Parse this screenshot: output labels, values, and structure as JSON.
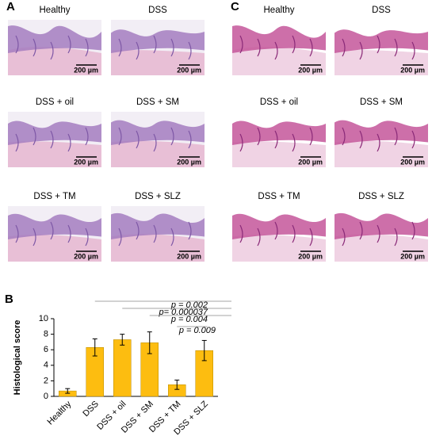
{
  "chart_data": {
    "type": "bar",
    "panel_label": "B",
    "y_label": "Histological score",
    "categories": [
      "Healthy",
      "DSS",
      "DSS + oil",
      "DSS + SM",
      "DSS + TM",
      "DSS + SLZ"
    ],
    "values": [
      0.7,
      6.3,
      7.3,
      6.9,
      1.5,
      5.9
    ],
    "errors": [
      0.3,
      1.1,
      0.7,
      1.4,
      0.6,
      1.3
    ],
    "color": "#fdbd10",
    "ylim": [
      0,
      10
    ],
    "yticks": [
      0,
      2,
      4,
      6,
      8,
      10
    ],
    "annotations": [
      "p = 0.002",
      "p= 0.000037",
      "p = 0.004",
      "p = 0.009"
    ]
  },
  "panels": [
    {
      "label": "A",
      "images": [
        {
          "caption": "Healthy",
          "scale_bar": "200 µm"
        },
        {
          "caption": "DSS",
          "scale_bar": "200 µm"
        },
        {
          "caption": "DSS + oil",
          "scale_bar": "200 µm"
        },
        {
          "caption": "DSS + SM",
          "scale_bar": "200 µm"
        },
        {
          "caption": "DSS + TM",
          "scale_bar": "200 µm"
        },
        {
          "caption": "DSS + SLZ",
          "scale_bar": "200 µm"
        }
      ]
    },
    {
      "label": "C",
      "images": [
        {
          "caption": "Healthy",
          "scale_bar": "200 µm"
        },
        {
          "caption": "DSS",
          "scale_bar": "200 µm"
        },
        {
          "caption": "DSS + oil",
          "scale_bar": "200 µm"
        },
        {
          "caption": "DSS + SM",
          "scale_bar": "200 µm"
        },
        {
          "caption": "DSS + TM",
          "scale_bar": "200 µm"
        },
        {
          "caption": "DSS + SLZ",
          "scale_bar": "200 µm"
        }
      ]
    }
  ]
}
